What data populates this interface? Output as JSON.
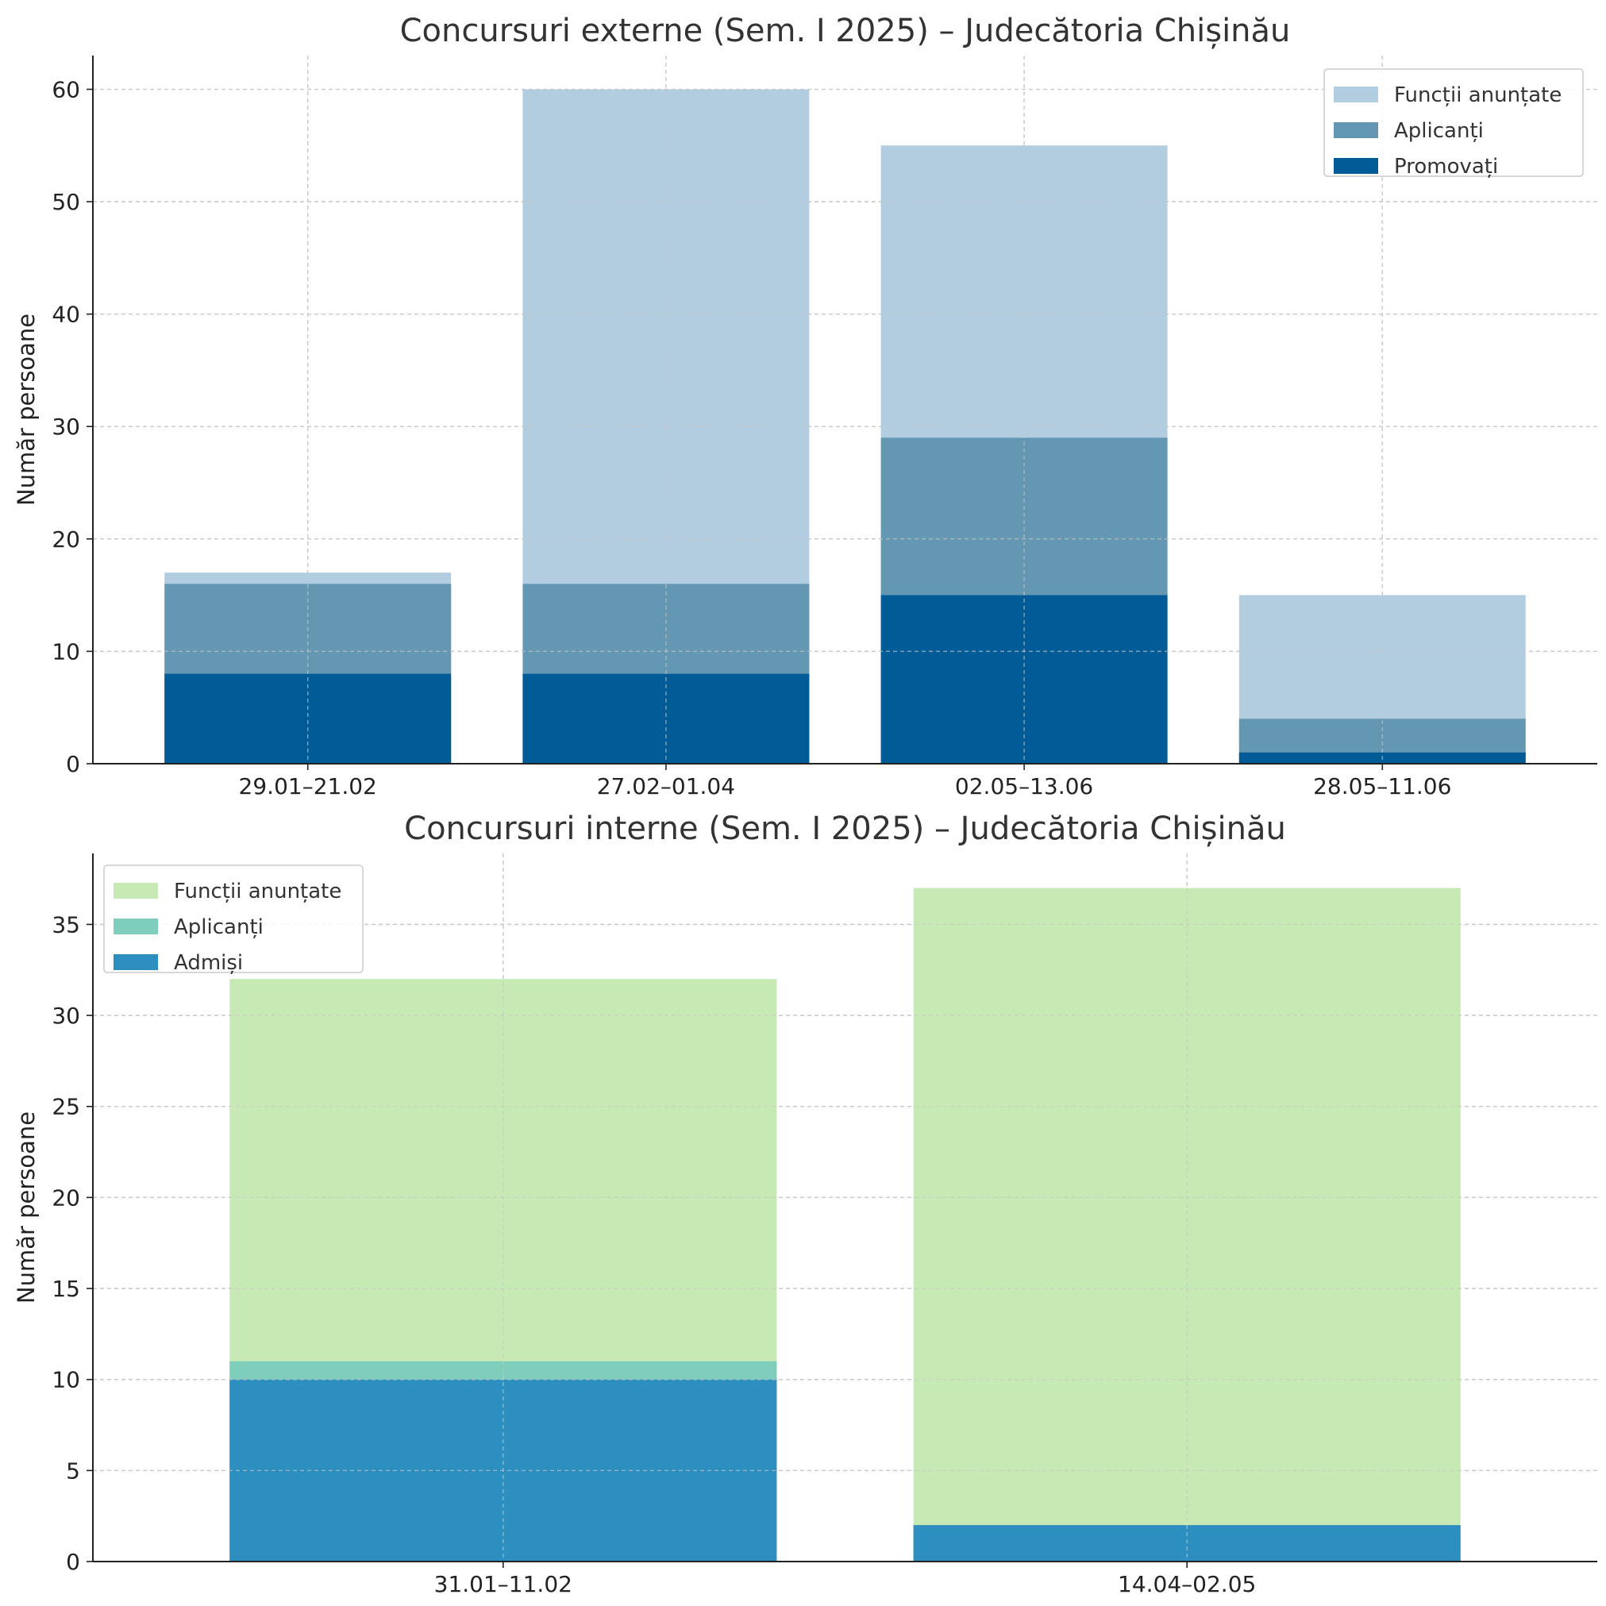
{
  "chart_data": [
    {
      "type": "bar",
      "title": "Concursuri externe (Sem. I 2025) – Judecătoria Chișinău",
      "xlabel": "",
      "ylabel": "Număr persoane",
      "categories": [
        "29.01–21.02",
        "27.02–01.04",
        "02.05–13.06",
        "28.05–11.06"
      ],
      "series": [
        {
          "name": "Funcții anunțate",
          "values": [
            17,
            60,
            55,
            15
          ],
          "color": "#b3cde0"
        },
        {
          "name": "Aplicanți",
          "values": [
            16,
            16,
            29,
            4
          ],
          "color": "#6497b1"
        },
        {
          "name": "Promovați",
          "values": [
            8,
            8,
            15,
            1
          ],
          "color": "#005b96"
        }
      ],
      "ylim": [
        0,
        63
      ],
      "yticks": [
        0,
        10,
        20,
        30,
        40,
        50,
        60
      ],
      "grid": true,
      "legend": "top-right",
      "overlapping": true
    },
    {
      "type": "bar",
      "title": "Concursuri interne (Sem. I 2025) – Judecătoria Chișinău",
      "xlabel": "",
      "ylabel": "Număr persoane",
      "categories": [
        "31.01–11.02",
        "14.04–02.05"
      ],
      "series": [
        {
          "name": "Funcții anunțate",
          "values": [
            32,
            37
          ],
          "color": "#c7e9b4"
        },
        {
          "name": "Aplicanți",
          "values": [
            11,
            2
          ],
          "color": "#7fcdbb"
        },
        {
          "name": "Admiși",
          "values": [
            10,
            2
          ],
          "color": "#2c8fc0"
        }
      ],
      "ylim": [
        0,
        38.9
      ],
      "yticks": [
        0,
        5,
        10,
        15,
        20,
        25,
        30,
        35
      ],
      "grid": true,
      "legend": "top-left",
      "overlapping": true
    }
  ]
}
